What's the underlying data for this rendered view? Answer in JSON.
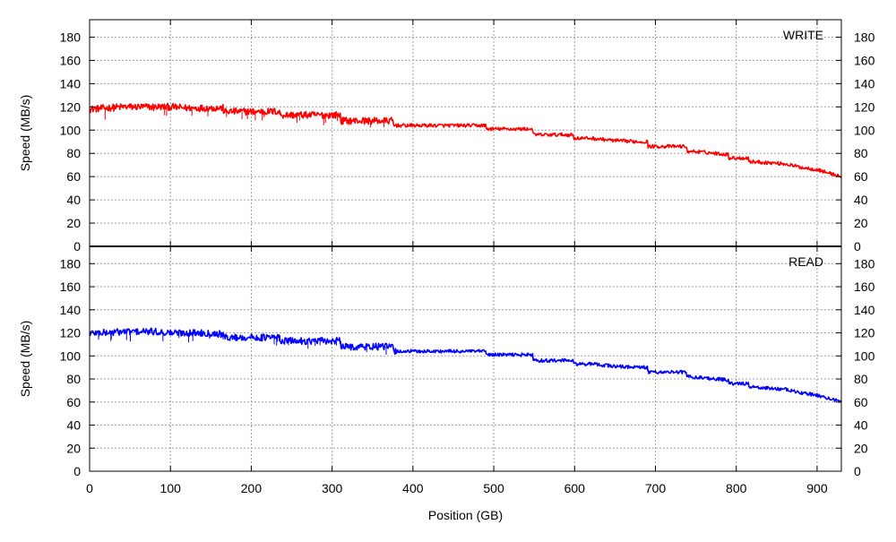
{
  "chart_data": [
    {
      "type": "line",
      "panel_label": "WRITE",
      "ylabel": "Speed (MB/s)",
      "xlabel": "",
      "xlim": [
        0,
        930
      ],
      "ylim": [
        0,
        195
      ],
      "x_ticks": [
        0,
        100,
        200,
        300,
        400,
        500,
        600,
        700,
        800,
        900
      ],
      "y_ticks": [
        0,
        20,
        40,
        60,
        80,
        100,
        120,
        140,
        160,
        180
      ],
      "grid": true,
      "color": "#ff0000",
      "series": [
        {
          "x": [
            0,
            20,
            40,
            60,
            80,
            100,
            120,
            140,
            165,
            166,
            190,
            210,
            235,
            236,
            260,
            285,
            310,
            311,
            330,
            350,
            375,
            376,
            400,
            430,
            460,
            490,
            491,
            520,
            548,
            549,
            575,
            598,
            599,
            620,
            650,
            680,
            690,
            691,
            715,
            738,
            739,
            760,
            790,
            791,
            815,
            816,
            840,
            860,
            880,
            900,
            915,
            930
          ],
          "values": [
            118,
            119,
            120,
            120,
            120,
            120,
            119,
            119,
            119,
            116,
            116,
            116,
            116,
            113,
            113,
            113,
            113,
            108,
            108,
            108,
            108,
            104,
            104,
            104,
            104,
            104,
            101,
            101,
            101,
            96,
            96,
            96,
            93,
            93,
            91,
            90,
            90,
            86,
            86,
            86,
            82,
            81,
            79,
            76,
            76,
            73,
            72,
            71,
            68,
            66,
            63,
            60
          ]
        }
      ]
    },
    {
      "type": "line",
      "panel_label": "READ",
      "ylabel": "Speed (MB/s)",
      "xlabel": "Position (GB)",
      "xlim": [
        0,
        930
      ],
      "ylim": [
        0,
        195
      ],
      "x_ticks": [
        0,
        100,
        200,
        300,
        400,
        500,
        600,
        700,
        800,
        900
      ],
      "y_ticks": [
        0,
        20,
        40,
        60,
        80,
        100,
        120,
        140,
        160,
        180
      ],
      "grid": true,
      "color": "#0000ff",
      "series": [
        {
          "x": [
            0,
            20,
            40,
            60,
            80,
            100,
            120,
            140,
            165,
            166,
            190,
            210,
            235,
            236,
            260,
            285,
            310,
            311,
            330,
            350,
            375,
            376,
            400,
            430,
            460,
            490,
            491,
            520,
            548,
            549,
            575,
            598,
            599,
            620,
            650,
            680,
            690,
            691,
            715,
            738,
            739,
            760,
            790,
            791,
            815,
            816,
            840,
            860,
            880,
            900,
            915,
            930
          ],
          "values": [
            120,
            120,
            121,
            121,
            121,
            120,
            120,
            120,
            119,
            116,
            116,
            116,
            116,
            113,
            113,
            113,
            113,
            108,
            108,
            108,
            108,
            104,
            104,
            104,
            104,
            104,
            101,
            101,
            101,
            96,
            96,
            96,
            93,
            93,
            91,
            90,
            90,
            86,
            86,
            86,
            82,
            81,
            79,
            76,
            76,
            73,
            72,
            71,
            68,
            66,
            63,
            60
          ]
        }
      ]
    }
  ]
}
